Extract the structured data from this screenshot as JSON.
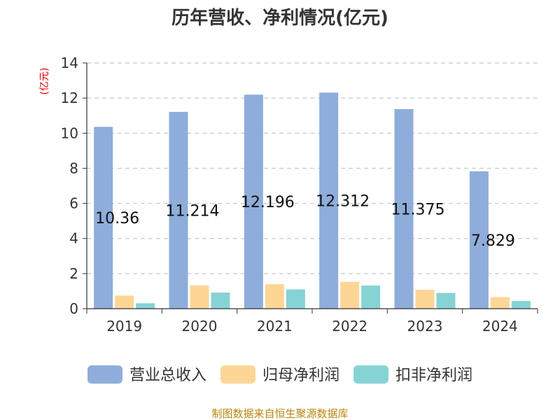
{
  "chart_data": {
    "type": "bar",
    "title": "历年营收、净利情况(亿元)",
    "ylabel": "(亿元)",
    "xlabel": "",
    "categories": [
      "2019",
      "2020",
      "2021",
      "2022",
      "2023",
      "2024"
    ],
    "ylim": [
      0,
      14
    ],
    "yticks": [
      0,
      2,
      4,
      6,
      8,
      10,
      12,
      14
    ],
    "grid": true,
    "legend_position": "bottom",
    "series": [
      {
        "name": "营业总收入",
        "color": "#8eadda",
        "values": [
          10.36,
          11.214,
          12.196,
          12.312,
          11.375,
          7.829
        ],
        "data_labels": [
          "10.36",
          "11.214",
          "12.196",
          "12.312",
          "11.375",
          "7.829"
        ]
      },
      {
        "name": "归母净利润",
        "color": "#fdd696",
        "values": [
          0.75,
          1.33,
          1.4,
          1.53,
          1.08,
          0.66
        ]
      },
      {
        "name": "扣非净利润",
        "color": "#86d3d6",
        "values": [
          0.31,
          0.92,
          1.1,
          1.32,
          0.9,
          0.44
        ]
      }
    ]
  },
  "footer": "制图数据来自恒生聚源数据库"
}
